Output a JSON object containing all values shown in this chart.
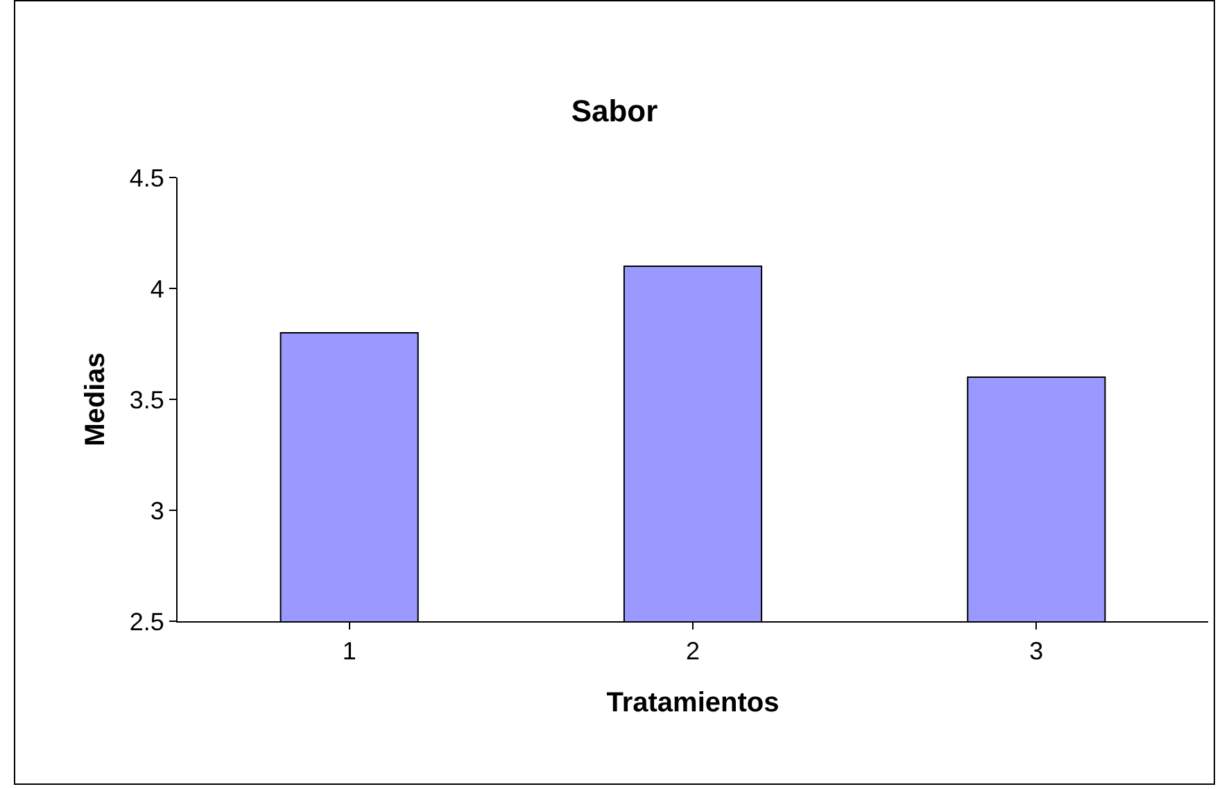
{
  "chart_data": {
    "type": "bar",
    "title": "Sabor",
    "xlabel": "Tratamientos",
    "ylabel": "Medias",
    "categories": [
      "1",
      "2",
      "3"
    ],
    "values": [
      3.8,
      4.1,
      3.6
    ],
    "color": "#9999ff",
    "ylim": [
      2.5,
      4.5
    ],
    "yticks": [
      2.5,
      3,
      3.5,
      4,
      4.5
    ],
    "grid": false
  }
}
